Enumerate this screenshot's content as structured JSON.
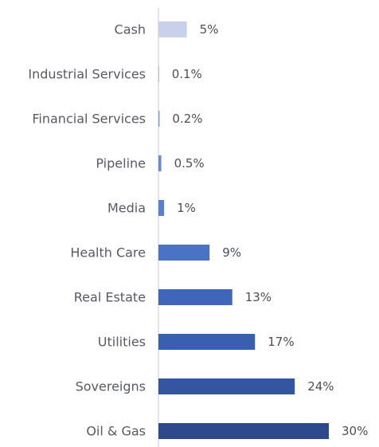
{
  "chart_data": {
    "type": "bar",
    "orientation": "horizontal",
    "categories": [
      "Cash",
      "Industrial Services",
      "Financial Services",
      "Pipeline",
      "Media",
      "Health Care",
      "Real Estate",
      "Utilities",
      "Sovereigns",
      "Oil & Gas"
    ],
    "values": [
      5,
      0.1,
      0.2,
      0.5,
      1,
      9,
      13,
      17,
      24,
      30
    ],
    "value_labels": [
      "5%",
      "0.1%",
      "0.2%",
      "0.5%",
      "1%",
      "9%",
      "13%",
      "17%",
      "24%",
      "30%"
    ],
    "colors": [
      "#c8d0ea",
      "#8ea3da",
      "#809ad8",
      "#6a89d0",
      "#5a7fcc",
      "#4a72c5",
      "#3f66b8",
      "#3a5fae",
      "#3455a0",
      "#2e4a8c"
    ],
    "xlim": [
      0,
      30
    ],
    "title": "",
    "xlabel": "",
    "ylabel": "",
    "grid": false,
    "legend": "none",
    "axis_color": "#c4c4c4"
  }
}
